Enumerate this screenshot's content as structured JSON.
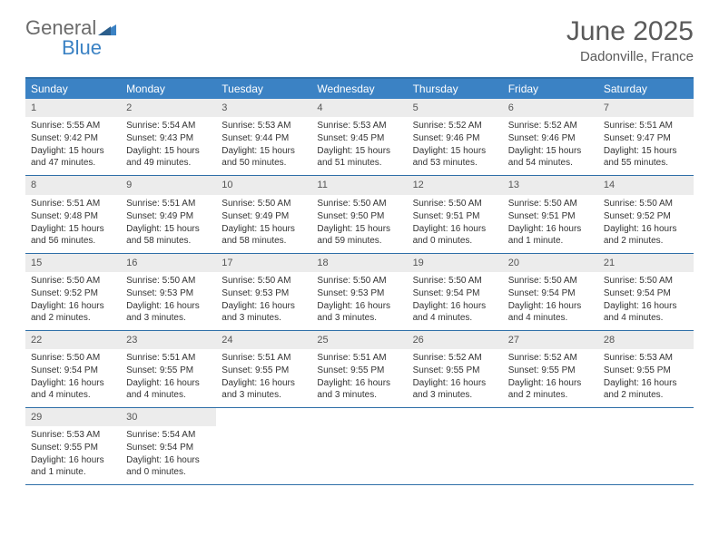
{
  "logo": {
    "word1": "General",
    "word2": "Blue"
  },
  "header": {
    "month": "June 2025",
    "location": "Dadonville, France"
  },
  "colors": {
    "header_bg": "#3b82c4",
    "border": "#2f6fa8",
    "daynum_bg": "#ececec",
    "text": "#333333",
    "header_text": "#ffffff",
    "logo_gray": "#6b6b6b",
    "logo_blue": "#3b82c4"
  },
  "dow": [
    "Sunday",
    "Monday",
    "Tuesday",
    "Wednesday",
    "Thursday",
    "Friday",
    "Saturday"
  ],
  "days": [
    {
      "n": "1",
      "sr": "5:55 AM",
      "ss": "9:42 PM",
      "dl": "15 hours and 47 minutes."
    },
    {
      "n": "2",
      "sr": "5:54 AM",
      "ss": "9:43 PM",
      "dl": "15 hours and 49 minutes."
    },
    {
      "n": "3",
      "sr": "5:53 AM",
      "ss": "9:44 PM",
      "dl": "15 hours and 50 minutes."
    },
    {
      "n": "4",
      "sr": "5:53 AM",
      "ss": "9:45 PM",
      "dl": "15 hours and 51 minutes."
    },
    {
      "n": "5",
      "sr": "5:52 AM",
      "ss": "9:46 PM",
      "dl": "15 hours and 53 minutes."
    },
    {
      "n": "6",
      "sr": "5:52 AM",
      "ss": "9:46 PM",
      "dl": "15 hours and 54 minutes."
    },
    {
      "n": "7",
      "sr": "5:51 AM",
      "ss": "9:47 PM",
      "dl": "15 hours and 55 minutes."
    },
    {
      "n": "8",
      "sr": "5:51 AM",
      "ss": "9:48 PM",
      "dl": "15 hours and 56 minutes."
    },
    {
      "n": "9",
      "sr": "5:51 AM",
      "ss": "9:49 PM",
      "dl": "15 hours and 58 minutes."
    },
    {
      "n": "10",
      "sr": "5:50 AM",
      "ss": "9:49 PM",
      "dl": "15 hours and 58 minutes."
    },
    {
      "n": "11",
      "sr": "5:50 AM",
      "ss": "9:50 PM",
      "dl": "15 hours and 59 minutes."
    },
    {
      "n": "12",
      "sr": "5:50 AM",
      "ss": "9:51 PM",
      "dl": "16 hours and 0 minutes."
    },
    {
      "n": "13",
      "sr": "5:50 AM",
      "ss": "9:51 PM",
      "dl": "16 hours and 1 minute."
    },
    {
      "n": "14",
      "sr": "5:50 AM",
      "ss": "9:52 PM",
      "dl": "16 hours and 2 minutes."
    },
    {
      "n": "15",
      "sr": "5:50 AM",
      "ss": "9:52 PM",
      "dl": "16 hours and 2 minutes."
    },
    {
      "n": "16",
      "sr": "5:50 AM",
      "ss": "9:53 PM",
      "dl": "16 hours and 3 minutes."
    },
    {
      "n": "17",
      "sr": "5:50 AM",
      "ss": "9:53 PM",
      "dl": "16 hours and 3 minutes."
    },
    {
      "n": "18",
      "sr": "5:50 AM",
      "ss": "9:53 PM",
      "dl": "16 hours and 3 minutes."
    },
    {
      "n": "19",
      "sr": "5:50 AM",
      "ss": "9:54 PM",
      "dl": "16 hours and 4 minutes."
    },
    {
      "n": "20",
      "sr": "5:50 AM",
      "ss": "9:54 PM",
      "dl": "16 hours and 4 minutes."
    },
    {
      "n": "21",
      "sr": "5:50 AM",
      "ss": "9:54 PM",
      "dl": "16 hours and 4 minutes."
    },
    {
      "n": "22",
      "sr": "5:50 AM",
      "ss": "9:54 PM",
      "dl": "16 hours and 4 minutes."
    },
    {
      "n": "23",
      "sr": "5:51 AM",
      "ss": "9:55 PM",
      "dl": "16 hours and 4 minutes."
    },
    {
      "n": "24",
      "sr": "5:51 AM",
      "ss": "9:55 PM",
      "dl": "16 hours and 3 minutes."
    },
    {
      "n": "25",
      "sr": "5:51 AM",
      "ss": "9:55 PM",
      "dl": "16 hours and 3 minutes."
    },
    {
      "n": "26",
      "sr": "5:52 AM",
      "ss": "9:55 PM",
      "dl": "16 hours and 3 minutes."
    },
    {
      "n": "27",
      "sr": "5:52 AM",
      "ss": "9:55 PM",
      "dl": "16 hours and 2 minutes."
    },
    {
      "n": "28",
      "sr": "5:53 AM",
      "ss": "9:55 PM",
      "dl": "16 hours and 2 minutes."
    },
    {
      "n": "29",
      "sr": "5:53 AM",
      "ss": "9:55 PM",
      "dl": "16 hours and 1 minute."
    },
    {
      "n": "30",
      "sr": "5:54 AM",
      "ss": "9:54 PM",
      "dl": "16 hours and 0 minutes."
    }
  ],
  "labels": {
    "sunrise": "Sunrise: ",
    "sunset": "Sunset: ",
    "daylight": "Daylight: "
  },
  "layout": {
    "first_weekday_offset": 0,
    "total_cells": 35
  }
}
